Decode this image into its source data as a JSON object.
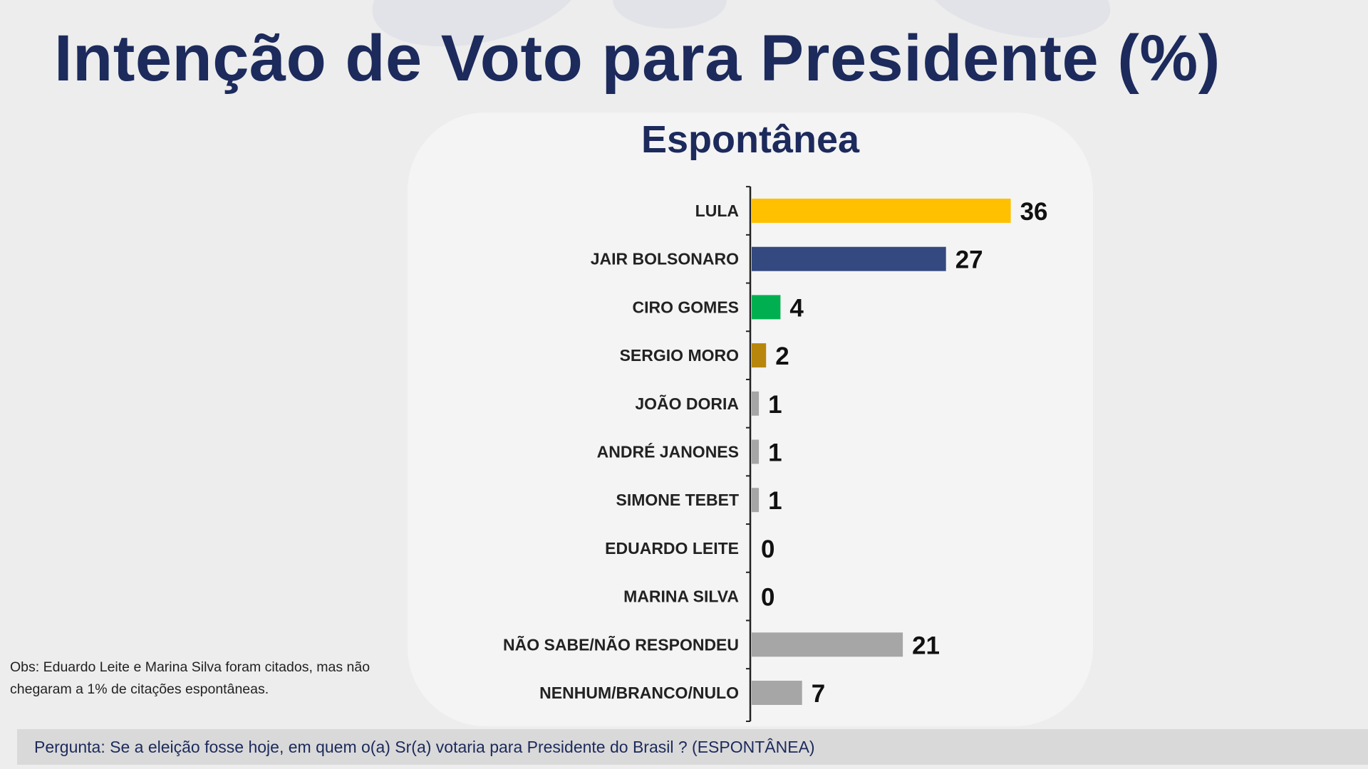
{
  "title": "Intenção de Voto para Presidente (%)",
  "obs": "Obs: Eduardo Leite e Marina Silva foram citados, mas não chegaram a 1% de citações espontâneas.",
  "question": "Pergunta:  Se a eleição fosse hoje, em quem o(a) Sr(a) votaria para  Presidente do Brasil ? (ESPONTÂNEA)",
  "colors": {
    "title": "#1c2a5c",
    "lula": "#ffc000",
    "bolsonaro": "#34497f",
    "ciro": "#00b050",
    "moro": "#b8860b",
    "other": "#a6a6a6"
  },
  "chart_data": {
    "type": "bar",
    "orientation": "horizontal",
    "title": "Espontânea",
    "xlabel": "",
    "ylabel": "",
    "xlim": [
      0,
      36
    ],
    "categories": [
      "LULA",
      "JAIR BOLSONARO",
      "CIRO GOMES",
      "SERGIO MORO",
      "JOÃO DORIA",
      "ANDRÉ JANONES",
      "SIMONE TEBET",
      "EDUARDO LEITE",
      "MARINA SILVA",
      "NÃO SABE/NÃO RESPONDEU",
      "NENHUM/BRANCO/NULO"
    ],
    "values": [
      36,
      27,
      4,
      2,
      1,
      1,
      1,
      0,
      0,
      21,
      7
    ],
    "bar_colors": [
      "#ffc000",
      "#34497f",
      "#00b050",
      "#b8860b",
      "#a6a6a6",
      "#a6a6a6",
      "#a6a6a6",
      "#a6a6a6",
      "#a6a6a6",
      "#a6a6a6",
      "#a6a6a6"
    ]
  }
}
